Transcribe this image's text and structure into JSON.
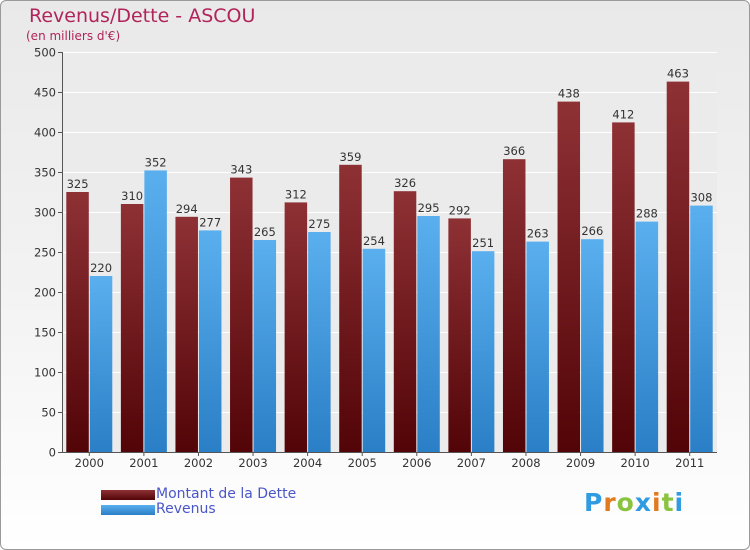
{
  "header": {
    "title": "Revenus/Dette - ASCOU",
    "subtitle": "(en milliers d'€)"
  },
  "legend": {
    "items": [
      {
        "label": "Montant de la Dette",
        "color": "#7a1c20"
      },
      {
        "label": "Revenus",
        "color": "#3d95dc"
      }
    ]
  },
  "brand": {
    "letters": [
      "P",
      "r",
      "o",
      "x",
      "i",
      "t",
      "i"
    ],
    "colors": [
      "#2f9be0",
      "#e27b1e",
      "#8ac43f",
      "#2f9be0",
      "#e27b1e",
      "#8ac43f",
      "#2f9be0"
    ]
  },
  "chart_data": {
    "type": "bar",
    "title": "Revenus/Dette - ASCOU",
    "ylabel": "(en milliers d'€)",
    "xlabel": "",
    "categories": [
      "2000",
      "2001",
      "2002",
      "2003",
      "2004",
      "2005",
      "2006",
      "2007",
      "2008",
      "2009",
      "2010",
      "2011"
    ],
    "series": [
      {
        "name": "Montant de la Dette",
        "color": "#7a1c20",
        "values": [
          325,
          310,
          294,
          343,
          312,
          359,
          326,
          292,
          366,
          438,
          412,
          463
        ]
      },
      {
        "name": "Revenus",
        "color": "#3d95dc",
        "values": [
          220,
          352,
          277,
          265,
          275,
          254,
          295,
          251,
          263,
          266,
          288,
          308
        ]
      }
    ],
    "ylim": [
      0,
      500
    ],
    "yticks": [
      0,
      50,
      100,
      150,
      200,
      250,
      300,
      350,
      400,
      450,
      500
    ],
    "grid": true,
    "legend_position": "bottom-left"
  }
}
